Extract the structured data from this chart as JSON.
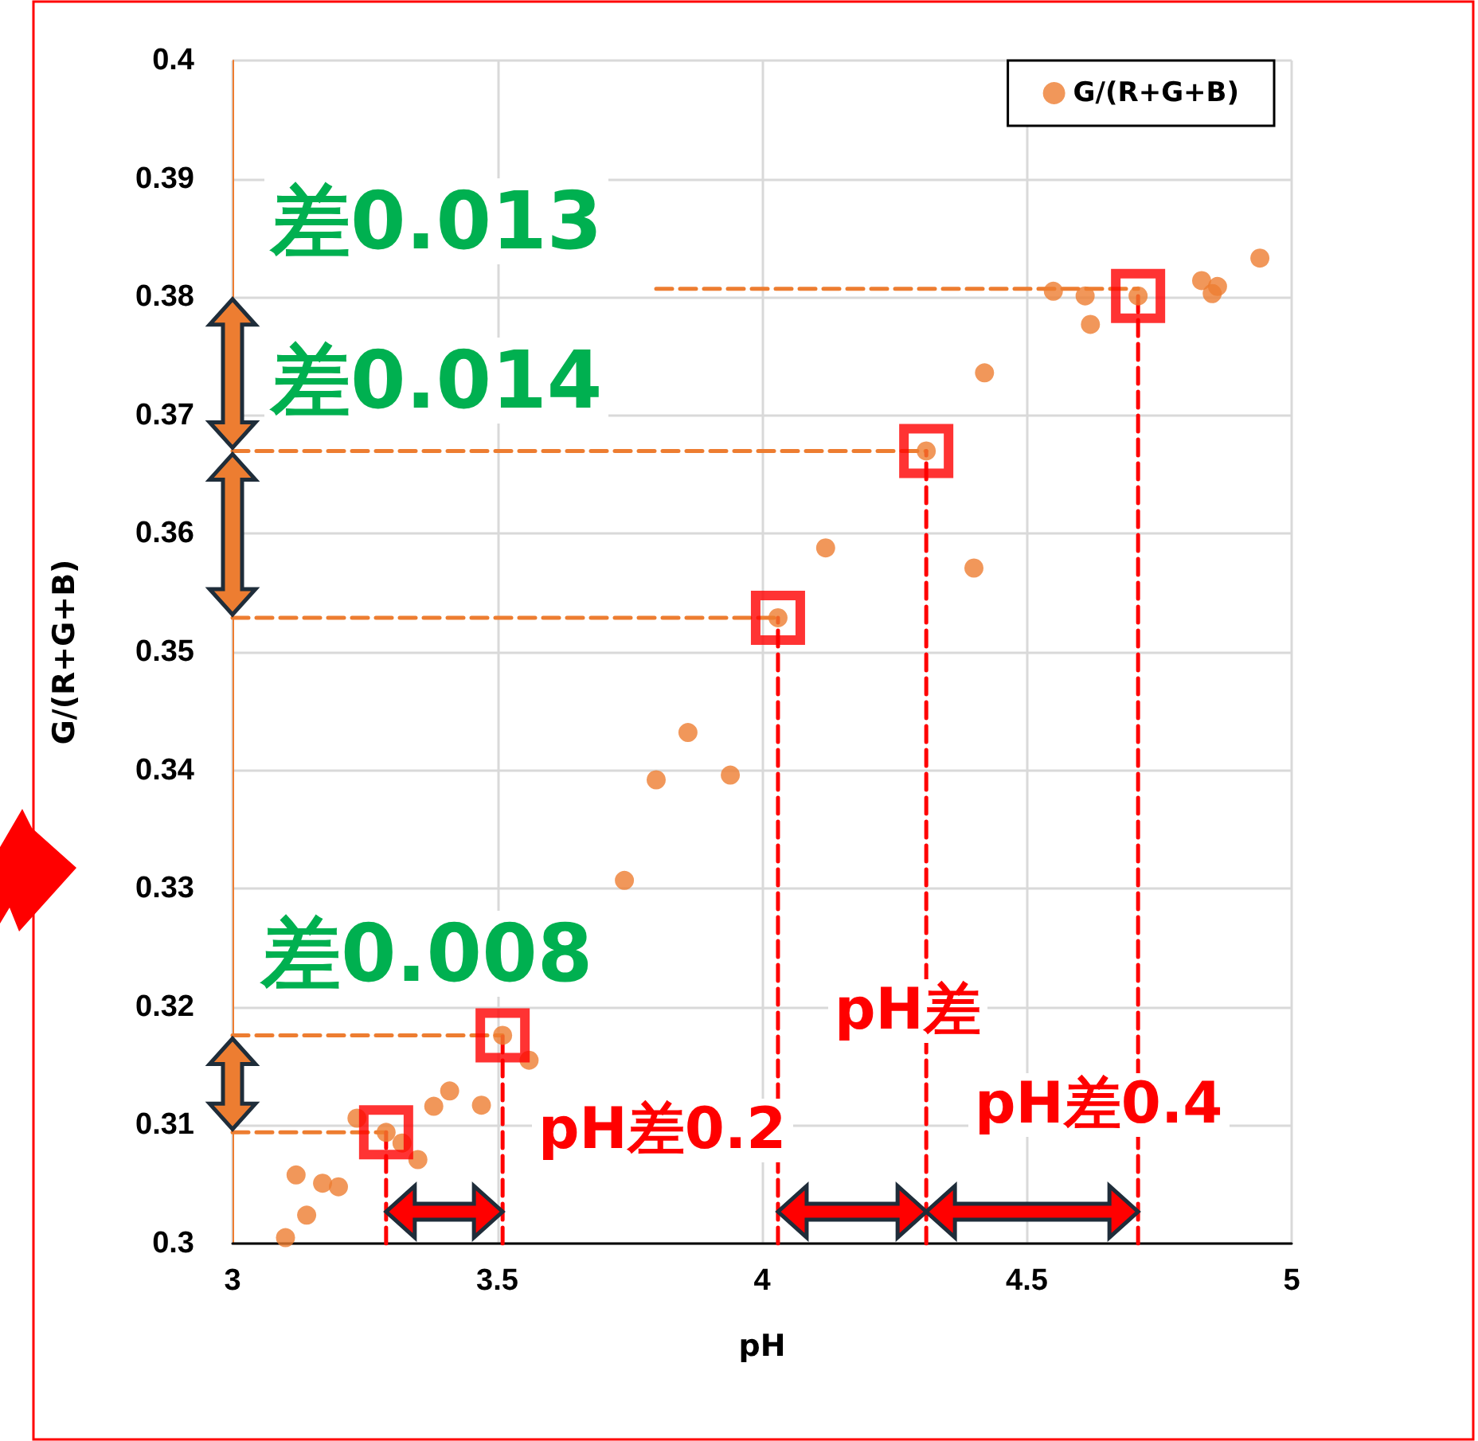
{
  "chart_data": {
    "type": "scatter",
    "xlabel": "pH",
    "ylabel": "G/(R+G+B)",
    "xlim": [
      3,
      5
    ],
    "xticks": [
      3,
      3.5,
      4,
      4.5,
      5
    ],
    "ylim": [
      0.3,
      0.4
    ],
    "yticks": [
      0.3,
      0.31,
      0.32,
      0.33,
      0.34,
      0.35,
      0.36,
      0.37,
      0.38,
      0.39,
      0.4
    ],
    "grid": true,
    "legend": "top right",
    "marker": "circle",
    "series": [
      {
        "name": "G/(R+G+B)",
        "color": "#ed7d31",
        "x": [
          3.1,
          3.12,
          3.14,
          3.17,
          3.2,
          3.235,
          3.29,
          3.32,
          3.35,
          3.38,
          3.41,
          3.47,
          3.51,
          3.56,
          3.74,
          3.8,
          3.86,
          3.94,
          4.03,
          4.12,
          4.31,
          4.4,
          4.42,
          4.55,
          4.61,
          4.62,
          4.71,
          4.83,
          4.85,
          4.86,
          4.94
        ],
        "values": [
          0.3005,
          0.3058,
          0.3024,
          0.3051,
          0.3048,
          0.3106,
          0.3094,
          0.3085,
          0.3071,
          0.3116,
          0.3129,
          0.3117,
          0.3176,
          0.3155,
          0.3307,
          0.3392,
          0.3432,
          0.3396,
          0.3529,
          0.3588,
          0.367,
          0.3571,
          0.3736,
          0.3805,
          0.3801,
          0.3777,
          0.3801,
          0.3814,
          0.3803,
          0.3809,
          0.3833
        ]
      },
      {
        "color": "#ff0000",
        "marker": "square",
        "x": [
          3.29,
          3.51,
          4.03,
          4.31,
          4.71
        ],
        "values": [
          0.3094,
          0.3176,
          0.3529,
          0.367,
          0.3801
        ]
      },
      {
        "type": "line",
        "color": "#ed7d31",
        "marker": "none",
        "line_style": "dashed",
        "x": [
          3,
          3.29
        ],
        "values": [
          0.3094,
          0.3094
        ]
      },
      {
        "type": "line",
        "color": "#ed7d31",
        "marker": "none",
        "line_style": "dashed",
        "x": [
          3,
          3.51
        ],
        "values": [
          0.3176,
          0.3176
        ]
      },
      {
        "type": "line",
        "color": "#ed7d31",
        "marker": "none",
        "line_style": "dashed",
        "x": [
          3,
          4.03
        ],
        "values": [
          0.3529,
          0.3529
        ]
      },
      {
        "type": "line",
        "color": "#ed7d31",
        "marker": "none",
        "line_style": "dashed",
        "x": [
          3,
          4.31
        ],
        "values": [
          0.367,
          0.367
        ]
      },
      {
        "type": "line",
        "color": "#ed7d31",
        "marker": "none",
        "line_style": "dashed",
        "x": [
          3.8,
          4.71
        ],
        "values": [
          0.3807,
          0.3807
        ]
      },
      {
        "type": "line",
        "color": "#ff0000",
        "marker": "none",
        "line_style": "dashed",
        "x": [
          3.29,
          3.29
        ],
        "values": [
          0.3,
          0.3094
        ]
      },
      {
        "type": "line",
        "color": "#ff0000",
        "marker": "none",
        "line_style": "dashed",
        "x": [
          3.51,
          3.51
        ],
        "values": [
          0.3,
          0.3176
        ]
      },
      {
        "type": "line",
        "color": "#ff0000",
        "marker": "none",
        "line_style": "dashed",
        "x": [
          4.03,
          4.03
        ],
        "values": [
          0.3,
          0.3529
        ]
      },
      {
        "type": "line",
        "color": "#ff0000",
        "marker": "none",
        "line_style": "dashed",
        "x": [
          4.31,
          4.31
        ],
        "values": [
          0.3,
          0.367
        ]
      },
      {
        "type": "line",
        "color": "#ff0000",
        "marker": "none",
        "line_style": "dashed",
        "x": [
          4.71,
          4.71
        ],
        "values": [
          0.3,
          0.3801
        ]
      }
    ],
    "annotations": [
      "差0.013",
      "差0.014",
      "差0.008",
      "pH差0.2",
      "pH差",
      "pH差0.4"
    ]
  }
}
